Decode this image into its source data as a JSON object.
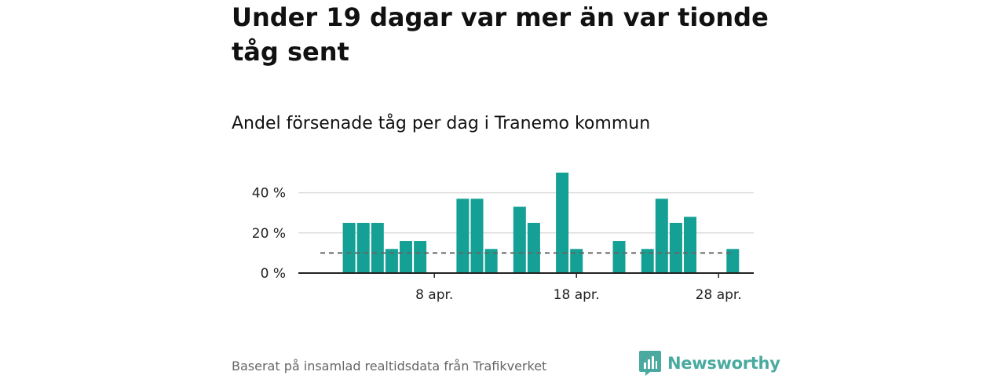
{
  "title": "Under 19 dagar var mer än var tionde tåg sent",
  "subtitle": "Andel försenade tåg per dag i Tranemo kommun",
  "source": "Baserat på insamlad realtidsdata från Trafikverket",
  "brand": {
    "name": "Newsworthy",
    "icon": "newsworthy-logo-icon",
    "color": "#4aaaa0"
  },
  "colors": {
    "bar": "#14a095",
    "grid": "#dddddd",
    "axis": "#222222",
    "reference": "#666666"
  },
  "chart_data": {
    "type": "bar",
    "title": "Andel försenade tåg per dag i Tranemo kommun",
    "xlabel": "",
    "ylabel": "",
    "x_domain": [
      1,
      30
    ],
    "ylim": [
      0,
      50
    ],
    "yticks": [
      {
        "value": 0,
        "label": "0 %"
      },
      {
        "value": 20,
        "label": "20 %"
      },
      {
        "value": 40,
        "label": "40 %"
      }
    ],
    "xticks": [
      {
        "day": 8,
        "label": "8 apr."
      },
      {
        "day": 18,
        "label": "18 apr."
      },
      {
        "day": 28,
        "label": "28 apr."
      }
    ],
    "reference_line": {
      "value": 10,
      "style": "dashed"
    },
    "days": [
      1,
      2,
      3,
      4,
      5,
      6,
      7,
      8,
      9,
      10,
      11,
      12,
      13,
      14,
      15,
      16,
      17,
      18,
      19,
      20,
      21,
      22,
      23,
      24,
      25,
      26,
      27,
      28,
      29,
      30
    ],
    "values": [
      0,
      25,
      25,
      25,
      12,
      16,
      16,
      0,
      0,
      37,
      37,
      12,
      0,
      33,
      25,
      0,
      50,
      12,
      0,
      0,
      16,
      0,
      12,
      37,
      25,
      28,
      0,
      0,
      12,
      0
    ]
  }
}
